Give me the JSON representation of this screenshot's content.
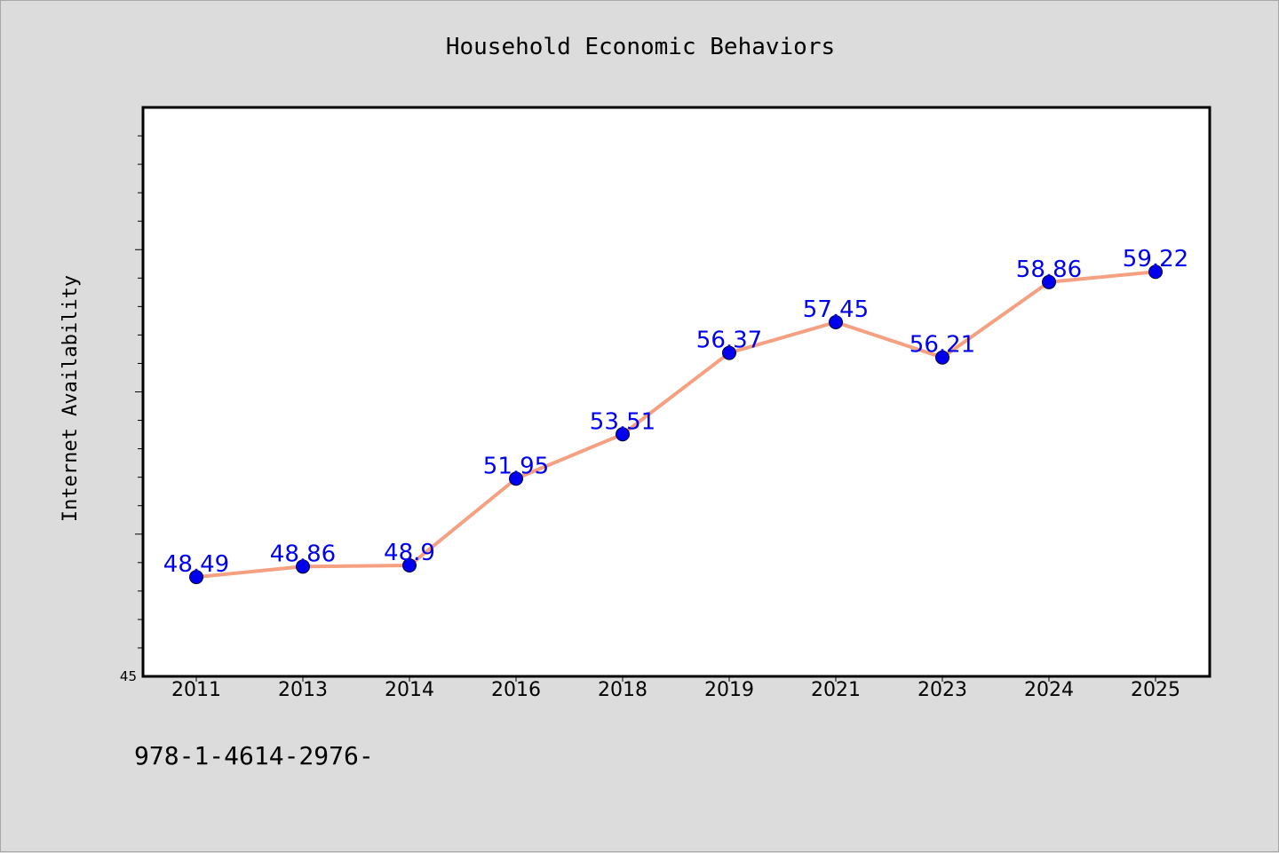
{
  "chart_data": {
    "type": "line",
    "title": "Household Economic Behaviors",
    "xlabel": "",
    "ylabel": "Internet Availability",
    "categories": [
      "2011",
      "2013",
      "2014",
      "2016",
      "2018",
      "2019",
      "2021",
      "2023",
      "2024",
      "2025"
    ],
    "series": [
      {
        "values": [
          48.49,
          48.86,
          48.9,
          51.95,
          53.51,
          56.37,
          57.45,
          56.21,
          58.86,
          59.22
        ]
      }
    ],
    "data_labels": [
      "48.49",
      "48.86",
      "48.9",
      "51.95",
      "53.51",
      "56.37",
      "57.45",
      "56.21",
      "58.86",
      "59.22"
    ],
    "ylim": [
      45,
      65
    ],
    "y_tick_label": "45",
    "grid": false,
    "legend": "none",
    "colors": {
      "line": "#f5a080",
      "marker": "#0000ee",
      "data_label": "#0000ee",
      "background": "#dcdcdc",
      "plot_background": "#ffffff"
    }
  },
  "footer": {
    "code": "978-1-4614-2976-"
  }
}
